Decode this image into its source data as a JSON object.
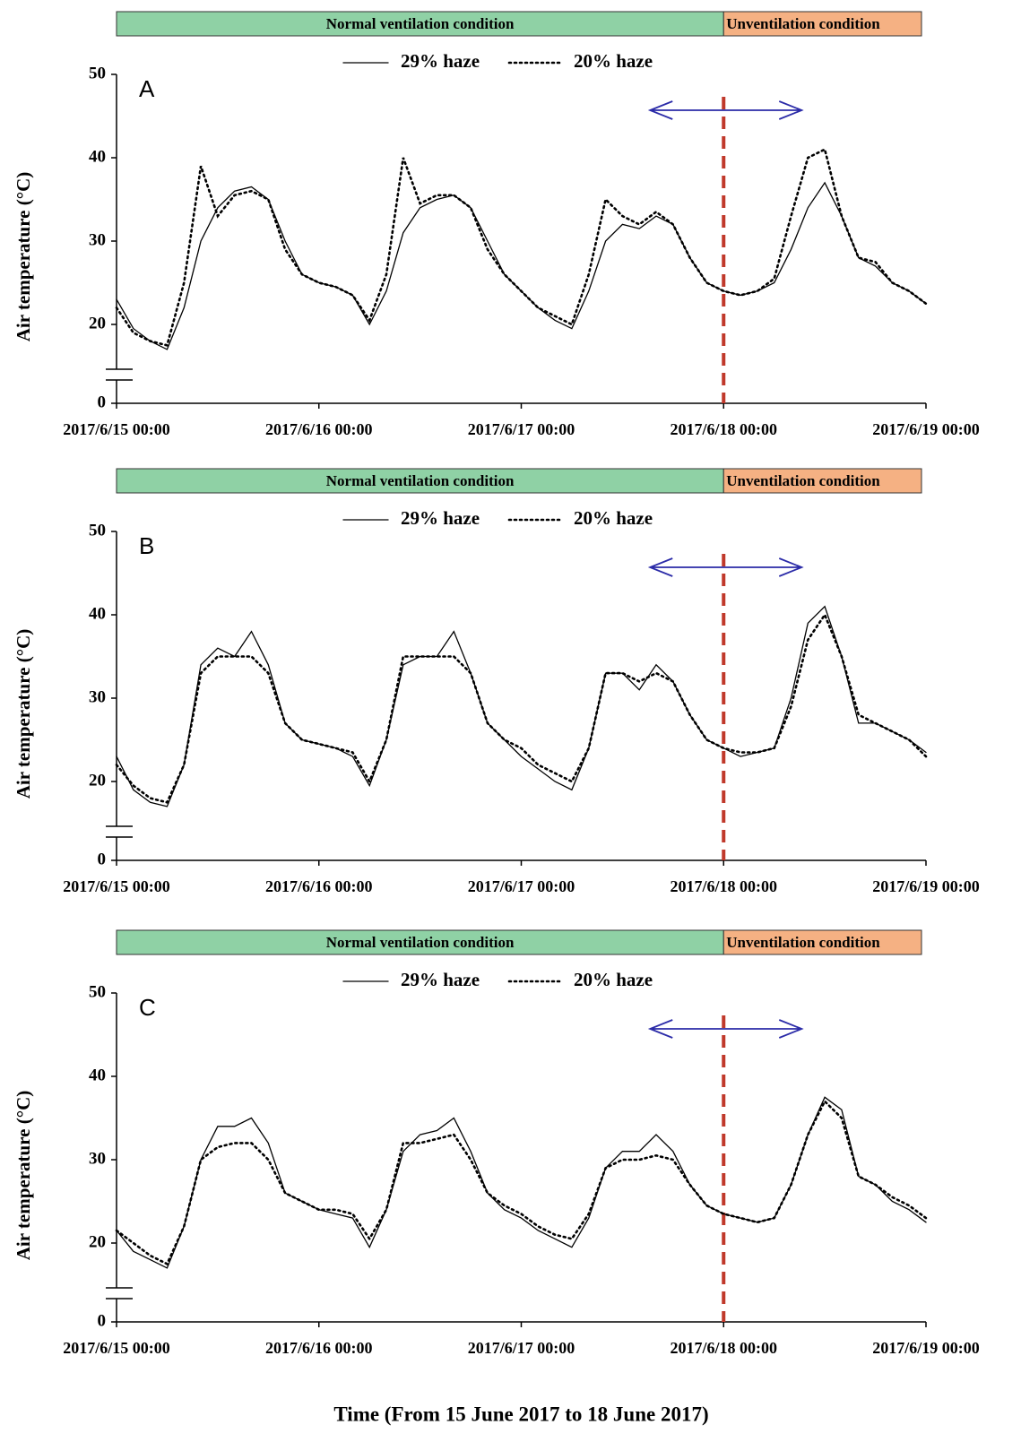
{
  "chart_data": [
    {
      "type": "line",
      "panel_label": "A",
      "y_label": "Air temperature (°C)",
      "bands": [
        {
          "label": "Normal ventilation condition",
          "color": "#8fd1a5",
          "from": "2017/6/15 00:00",
          "to": "2017/6/18 00:00"
        },
        {
          "label": "Unventilation condition",
          "color": "#f5b183",
          "from": "2017/6/18 00:00",
          "to": "2017/6/19 00:00"
        }
      ],
      "divider": {
        "x": "2017/6/18 00:00",
        "color": "#c0392b"
      },
      "xlim": [
        "2017/6/15 00:00",
        "2017/6/19 00:00"
      ],
      "xticks": [
        "2017/6/15 00:00",
        "2017/6/16 00:00",
        "2017/6/17 00:00",
        "2017/6/18 00:00",
        "2017/6/19 00:00"
      ],
      "ylim": [
        0,
        50
      ],
      "yticks": [
        0,
        20,
        30,
        40,
        50
      ],
      "axis_break": true,
      "x": [
        "2017/6/15 00:00",
        "2017/6/15 02:00",
        "2017/6/15 04:00",
        "2017/6/15 06:00",
        "2017/6/15 08:00",
        "2017/6/15 10:00",
        "2017/6/15 12:00",
        "2017/6/15 14:00",
        "2017/6/15 16:00",
        "2017/6/15 18:00",
        "2017/6/15 20:00",
        "2017/6/15 22:00",
        "2017/6/16 00:00",
        "2017/6/16 02:00",
        "2017/6/16 04:00",
        "2017/6/16 06:00",
        "2017/6/16 08:00",
        "2017/6/16 10:00",
        "2017/6/16 12:00",
        "2017/6/16 14:00",
        "2017/6/16 16:00",
        "2017/6/16 18:00",
        "2017/6/16 20:00",
        "2017/6/16 22:00",
        "2017/6/17 00:00",
        "2017/6/17 02:00",
        "2017/6/17 04:00",
        "2017/6/17 06:00",
        "2017/6/17 08:00",
        "2017/6/17 10:00",
        "2017/6/17 12:00",
        "2017/6/17 14:00",
        "2017/6/17 16:00",
        "2017/6/17 18:00",
        "2017/6/17 20:00",
        "2017/6/17 22:00",
        "2017/6/18 00:00",
        "2017/6/18 02:00",
        "2017/6/18 04:00",
        "2017/6/18 06:00",
        "2017/6/18 08:00",
        "2017/6/18 10:00",
        "2017/6/18 12:00",
        "2017/6/18 14:00",
        "2017/6/18 16:00",
        "2017/6/18 18:00",
        "2017/6/18 20:00",
        "2017/6/18 22:00",
        "2017/6/19 00:00"
      ],
      "series": [
        {
          "name": "29% haze",
          "color": "#000000",
          "dash": "solid",
          "values": [
            23,
            19.5,
            18,
            17,
            22,
            30,
            34,
            36,
            36.5,
            35,
            30,
            26,
            25,
            24.5,
            23.5,
            20,
            24,
            31,
            34,
            35,
            35.5,
            34,
            30,
            26,
            24,
            22,
            20.5,
            19.5,
            24,
            30,
            32,
            31.5,
            33,
            32,
            28,
            25,
            24,
            23.5,
            24,
            25,
            29,
            34,
            37,
            33,
            28,
            27,
            25,
            24,
            22.5
          ]
        },
        {
          "name": "20% haze",
          "color": "#000000",
          "dash": "dotted",
          "values": [
            22,
            19,
            18,
            17.5,
            25,
            39,
            33,
            35.5,
            36,
            35,
            29,
            26,
            25,
            24.5,
            23.5,
            20.5,
            26,
            40,
            34.5,
            35.5,
            35.5,
            34,
            29,
            26,
            24,
            22,
            21,
            20,
            26,
            35,
            33,
            32,
            33.5,
            32,
            28,
            25,
            24,
            23.5,
            24,
            25.5,
            33,
            40,
            41,
            33,
            28,
            27.5,
            25,
            24,
            22.5
          ]
        }
      ]
    },
    {
      "type": "line",
      "panel_label": "B",
      "y_label": "Air temperature (°C)",
      "bands": [
        {
          "label": "Normal ventilation condition",
          "color": "#8fd1a5",
          "from": "2017/6/15 00:00",
          "to": "2017/6/18 00:00"
        },
        {
          "label": "Unventilation condition",
          "color": "#f5b183",
          "from": "2017/6/18 00:00",
          "to": "2017/6/19 00:00"
        }
      ],
      "divider": {
        "x": "2017/6/18 00:00",
        "color": "#c0392b"
      },
      "xlim": [
        "2017/6/15 00:00",
        "2017/6/19 00:00"
      ],
      "xticks": [
        "2017/6/15 00:00",
        "2017/6/16 00:00",
        "2017/6/17 00:00",
        "2017/6/18 00:00",
        "2017/6/19 00:00"
      ],
      "ylim": [
        0,
        50
      ],
      "yticks": [
        0,
        20,
        30,
        40,
        50
      ],
      "axis_break": true,
      "x": [
        "2017/6/15 00:00",
        "2017/6/15 02:00",
        "2017/6/15 04:00",
        "2017/6/15 06:00",
        "2017/6/15 08:00",
        "2017/6/15 10:00",
        "2017/6/15 12:00",
        "2017/6/15 14:00",
        "2017/6/15 16:00",
        "2017/6/15 18:00",
        "2017/6/15 20:00",
        "2017/6/15 22:00",
        "2017/6/16 00:00",
        "2017/6/16 02:00",
        "2017/6/16 04:00",
        "2017/6/16 06:00",
        "2017/6/16 08:00",
        "2017/6/16 10:00",
        "2017/6/16 12:00",
        "2017/6/16 14:00",
        "2017/6/16 16:00",
        "2017/6/16 18:00",
        "2017/6/16 20:00",
        "2017/6/16 22:00",
        "2017/6/17 00:00",
        "2017/6/17 02:00",
        "2017/6/17 04:00",
        "2017/6/17 06:00",
        "2017/6/17 08:00",
        "2017/6/17 10:00",
        "2017/6/17 12:00",
        "2017/6/17 14:00",
        "2017/6/17 16:00",
        "2017/6/17 18:00",
        "2017/6/17 20:00",
        "2017/6/17 22:00",
        "2017/6/18 00:00",
        "2017/6/18 02:00",
        "2017/6/18 04:00",
        "2017/6/18 06:00",
        "2017/6/18 08:00",
        "2017/6/18 10:00",
        "2017/6/18 12:00",
        "2017/6/18 14:00",
        "2017/6/18 16:00",
        "2017/6/18 18:00",
        "2017/6/18 20:00",
        "2017/6/18 22:00",
        "2017/6/19 00:00"
      ],
      "series": [
        {
          "name": "29% haze",
          "color": "#000000",
          "dash": "solid",
          "values": [
            23,
            19,
            17.5,
            17,
            22,
            34,
            36,
            35,
            38,
            34,
            27,
            25,
            24.5,
            24,
            23,
            19.5,
            25,
            34,
            35,
            35,
            38,
            33,
            27,
            25,
            23,
            21.5,
            20,
            19,
            24,
            33,
            33,
            31,
            34,
            32,
            28,
            25,
            24,
            23,
            23.5,
            24,
            30,
            39,
            41,
            35,
            27,
            27,
            26,
            25,
            23.5
          ]
        },
        {
          "name": "20% haze",
          "color": "#000000",
          "dash": "dotted",
          "values": [
            22,
            19.5,
            18,
            17.5,
            22,
            33,
            35,
            35,
            35,
            33,
            27,
            25,
            24.5,
            24,
            23.5,
            20,
            25,
            35,
            35,
            35,
            35,
            33,
            27,
            25,
            24,
            22,
            21,
            20,
            24,
            33,
            33,
            32,
            33,
            32,
            28,
            25,
            24,
            23.5,
            23.5,
            24,
            29,
            37,
            40,
            35,
            28,
            27,
            26,
            25,
            23
          ]
        }
      ]
    },
    {
      "type": "line",
      "panel_label": "C",
      "y_label": "Air temperature (°C)",
      "x_label": "Time (From 15 June 2017 to 18 June 2017)",
      "bands": [
        {
          "label": "Normal ventilation condition",
          "color": "#8fd1a5",
          "from": "2017/6/15 00:00",
          "to": "2017/6/18 00:00"
        },
        {
          "label": "Unventilation condition",
          "color": "#f5b183",
          "from": "2017/6/18 00:00",
          "to": "2017/6/19 00:00"
        }
      ],
      "divider": {
        "x": "2017/6/18 00:00",
        "color": "#c0392b"
      },
      "xlim": [
        "2017/6/15 00:00",
        "2017/6/19 00:00"
      ],
      "xticks": [
        "2017/6/15 00:00",
        "2017/6/16 00:00",
        "2017/6/17 00:00",
        "2017/6/18 00:00",
        "2017/6/19 00:00"
      ],
      "ylim": [
        0,
        50
      ],
      "yticks": [
        0,
        20,
        30,
        40,
        50
      ],
      "axis_break": true,
      "x": [
        "2017/6/15 00:00",
        "2017/6/15 02:00",
        "2017/6/15 04:00",
        "2017/6/15 06:00",
        "2017/6/15 08:00",
        "2017/6/15 10:00",
        "2017/6/15 12:00",
        "2017/6/15 14:00",
        "2017/6/15 16:00",
        "2017/6/15 18:00",
        "2017/6/15 20:00",
        "2017/6/15 22:00",
        "2017/6/16 00:00",
        "2017/6/16 02:00",
        "2017/6/16 04:00",
        "2017/6/16 06:00",
        "2017/6/16 08:00",
        "2017/6/16 10:00",
        "2017/6/16 12:00",
        "2017/6/16 14:00",
        "2017/6/16 16:00",
        "2017/6/16 18:00",
        "2017/6/16 20:00",
        "2017/6/16 22:00",
        "2017/6/17 00:00",
        "2017/6/17 02:00",
        "2017/6/17 04:00",
        "2017/6/17 06:00",
        "2017/6/17 08:00",
        "2017/6/17 10:00",
        "2017/6/17 12:00",
        "2017/6/17 14:00",
        "2017/6/17 16:00",
        "2017/6/17 18:00",
        "2017/6/17 20:00",
        "2017/6/17 22:00",
        "2017/6/18 00:00",
        "2017/6/18 02:00",
        "2017/6/18 04:00",
        "2017/6/18 06:00",
        "2017/6/18 08:00",
        "2017/6/18 10:00",
        "2017/6/18 12:00",
        "2017/6/18 14:00",
        "2017/6/18 16:00",
        "2017/6/18 18:00",
        "2017/6/18 20:00",
        "2017/6/18 22:00",
        "2017/6/19 00:00"
      ],
      "series": [
        {
          "name": "29% haze",
          "color": "#000000",
          "dash": "solid",
          "values": [
            21.5,
            19,
            18,
            17,
            22,
            30,
            34,
            34,
            35,
            32,
            26,
            25,
            24,
            23.5,
            23,
            19.5,
            24,
            31,
            33,
            33.5,
            35,
            31,
            26,
            24,
            23,
            21.5,
            20.5,
            19.5,
            23,
            29,
            31,
            31,
            33,
            31,
            27,
            24.5,
            23.5,
            23,
            22.5,
            23,
            27,
            33,
            37.5,
            36,
            28,
            27,
            25,
            24,
            22.5
          ]
        },
        {
          "name": "20% haze",
          "color": "#000000",
          "dash": "dotted",
          "values": [
            21.5,
            20,
            18.5,
            17.5,
            22,
            30,
            31.5,
            32,
            32,
            30,
            26,
            25,
            24,
            24,
            23.5,
            20.5,
            24,
            32,
            32,
            32.5,
            33,
            30,
            26,
            24.5,
            23.5,
            22,
            21,
            20.5,
            23.5,
            29,
            30,
            30,
            30.5,
            30,
            27,
            24.5,
            23.5,
            23,
            22.5,
            23,
            27,
            33,
            37,
            35,
            28,
            27,
            25.5,
            24.5,
            23
          ]
        }
      ]
    }
  ]
}
